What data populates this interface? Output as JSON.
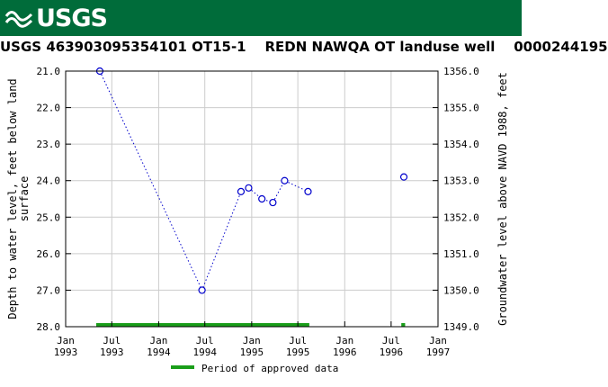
{
  "header": {
    "brand": "USGS",
    "brand_color": "#006c3a",
    "logo_icon": "usgs-logo-icon"
  },
  "chart_data": {
    "type": "scatter",
    "title": "USGS 463903095354101 OT15-1    REDN NAWQA OT landuse well    0000244195",
    "ylabel": "Depth to water level, feet below land\nsurface",
    "y2label": "Groundwater level above NAVD 1988, feet",
    "xlabel": "",
    "ylim": [
      28.0,
      21.0
    ],
    "y_inverted": true,
    "y2lim": [
      1349.0,
      1356.0
    ],
    "x_range": [
      "1993-01-01",
      "1997-01-01"
    ],
    "y_ticks": [
      "21.0",
      "22.0",
      "23.0",
      "24.0",
      "25.0",
      "26.0",
      "27.0",
      "28.0"
    ],
    "y2_ticks": [
      "1356.0",
      "1355.0",
      "1354.0",
      "1353.0",
      "1352.0",
      "1351.0",
      "1350.0",
      "1349.0"
    ],
    "x_ticks": [
      {
        "date": "1993-01-01",
        "line1": "Jan",
        "line2": "1993"
      },
      {
        "date": "1993-07-01",
        "line1": "Jul",
        "line2": "1993"
      },
      {
        "date": "1994-01-01",
        "line1": "Jan",
        "line2": "1994"
      },
      {
        "date": "1994-07-01",
        "line1": "Jul",
        "line2": "1994"
      },
      {
        "date": "1995-01-01",
        "line1": "Jan",
        "line2": "1995"
      },
      {
        "date": "1995-07-01",
        "line1": "Jul",
        "line2": "1995"
      },
      {
        "date": "1996-01-01",
        "line1": "Jan",
        "line2": "1996"
      },
      {
        "date": "1996-07-01",
        "line1": "Jul",
        "line2": "1996"
      },
      {
        "date": "1997-01-01",
        "line1": "Jan",
        "line2": "1997"
      }
    ],
    "grid": true,
    "series": [
      {
        "color": "#0000cc",
        "marker": "open-circle",
        "line": "dotted",
        "points": [
          {
            "date": "1993-05-15",
            "y": 21.0
          },
          {
            "date": "1994-06-20",
            "y": 27.0
          },
          {
            "date": "1994-11-20",
            "y": 24.3
          },
          {
            "date": "1994-12-20",
            "y": 24.2
          },
          {
            "date": "1995-02-10",
            "y": 24.5
          },
          {
            "date": "1995-03-25",
            "y": 24.6
          },
          {
            "date": "1995-05-10",
            "y": 24.0
          },
          {
            "date": "1995-08-10",
            "y": 24.3
          }
        ]
      },
      {
        "color": "#0000cc",
        "marker": "open-circle",
        "line": "none",
        "points": [
          {
            "date": "1996-08-20",
            "y": 23.9
          }
        ]
      }
    ],
    "approved_periods": [
      {
        "start": "1993-05-01",
        "end": "1995-08-15"
      },
      {
        "start": "1996-08-10",
        "end": "1996-08-25"
      }
    ],
    "approved_color": "#1a9e1a",
    "legend": {
      "label": "Period of approved data",
      "placement": "bottom"
    }
  }
}
